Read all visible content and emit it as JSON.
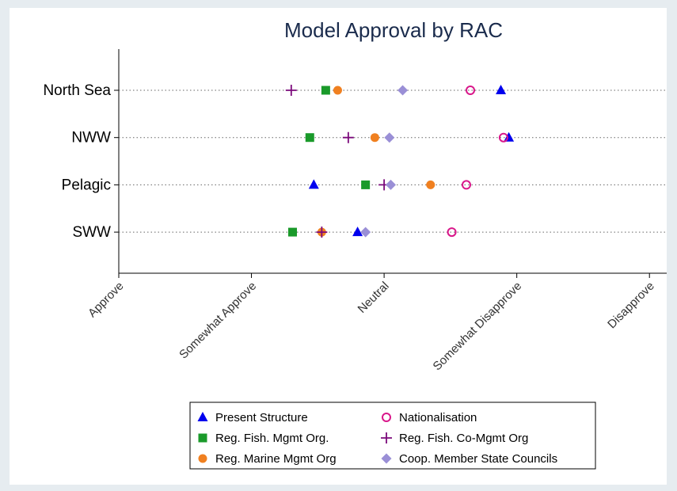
{
  "chart_data": {
    "type": "dot",
    "title": "Model Approval by RAC",
    "categories": [
      "North Sea",
      "NWW",
      "Pelagic",
      "SWW"
    ],
    "series": [
      {
        "name": "Present Structure",
        "color": "#0000ee",
        "marker": "triangle",
        "values": [
          3.88,
          3.94,
          2.47,
          2.8
        ]
      },
      {
        "name": "Reg. Fish. Mgmt Org.",
        "color": "#1a9a2a",
        "marker": "square",
        "values": [
          2.56,
          2.44,
          2.86,
          2.31
        ]
      },
      {
        "name": "Reg. Marine Mgmt Org",
        "color": "#f08020",
        "marker": "circle",
        "values": [
          2.65,
          2.93,
          3.35,
          2.53
        ]
      },
      {
        "name": "Nationalisation",
        "color": "#d9178a",
        "marker": "hollow-circle",
        "values": [
          3.65,
          3.9,
          3.62,
          3.51
        ]
      },
      {
        "name": "Reg. Fish. Co-Mgmt Org",
        "color": "#7b0a7b",
        "marker": "plus",
        "values": [
          2.3,
          2.73,
          3.0,
          2.53
        ]
      },
      {
        "name": "Coop. Member State Councils",
        "color": "#9a8fd6",
        "marker": "diamond",
        "values": [
          3.14,
          3.04,
          3.05,
          2.86
        ]
      }
    ],
    "xlim": [
      1,
      5.13
    ],
    "xticks": [
      {
        "value": 1,
        "label": "Approve"
      },
      {
        "value": 2,
        "label": "Somewhat Approve"
      },
      {
        "value": 3,
        "label": "Neutral"
      },
      {
        "value": 4,
        "label": "Somewhat Disapprove"
      },
      {
        "value": 5,
        "label": "Disapprove"
      }
    ],
    "grid": true
  }
}
